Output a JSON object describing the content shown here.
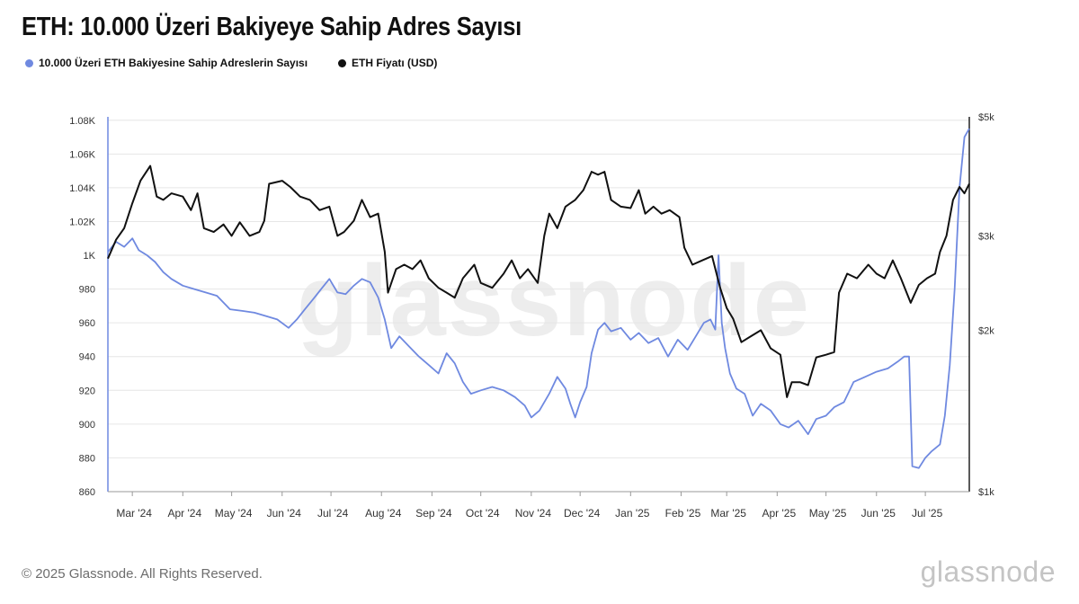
{
  "title": "ETH: 10.000 Üzeri Bakiyeye Sahip Adres Sayısı",
  "legend": [
    {
      "label": "10.000 Üzeri ETH Bakiyesine Sahip Adreslerin Sayısı",
      "color": "#6f89e0"
    },
    {
      "label": "ETH Fiyatı (USD)",
      "color": "#111111"
    }
  ],
  "watermark": "glassnode",
  "footer": "© 2025 Glassnode. All Rights Reserved.",
  "brand": "glassnode",
  "chart_data": {
    "type": "line",
    "x_tick_labels": [
      "Mar '24",
      "Apr '24",
      "May '24",
      "Jun '24",
      "Jul '24",
      "Aug '24",
      "Sep '24",
      "Oct '24",
      "Nov '24",
      "Dec '24",
      "Jan '25",
      "Feb '25",
      "Mar '25",
      "Apr '25",
      "May '25",
      "Jun '25",
      "Jul '25"
    ],
    "y_left": {
      "ticks": [
        860,
        880,
        900,
        920,
        940,
        960,
        980,
        1000,
        1020,
        1040,
        1060,
        1080
      ],
      "tick_labels": [
        "860",
        "880",
        "900",
        "920",
        "940",
        "960",
        "980",
        "1K",
        "1.02K",
        "1.04K",
        "1.06K",
        "1.08K"
      ],
      "range": [
        860,
        1082
      ]
    },
    "y_right": {
      "scale": "log",
      "ticks": [
        1000,
        2000,
        3000,
        5000
      ],
      "tick_labels": [
        "$1k",
        "$2k",
        "$3k",
        "$5k"
      ],
      "range": [
        1000,
        5000
      ]
    },
    "x_range": [
      "2024-02-15",
      "2025-07-28"
    ],
    "series": [
      {
        "name": "10.000 Üzeri ETH Bakiyesine Sahip Adreslerin Sayısı",
        "axis": "left",
        "color": "#6f89e0",
        "points": [
          [
            "2024-02-15",
            1002
          ],
          [
            "2024-02-20",
            1008
          ],
          [
            "2024-02-25",
            1005
          ],
          [
            "2024-03-01",
            1010
          ],
          [
            "2024-03-05",
            1003
          ],
          [
            "2024-03-10",
            1000
          ],
          [
            "2024-03-15",
            996
          ],
          [
            "2024-03-20",
            990
          ],
          [
            "2024-03-25",
            986
          ],
          [
            "2024-04-01",
            982
          ],
          [
            "2024-04-08",
            980
          ],
          [
            "2024-04-15",
            978
          ],
          [
            "2024-04-22",
            976
          ],
          [
            "2024-04-30",
            968
          ],
          [
            "2024-05-08",
            967
          ],
          [
            "2024-05-15",
            966
          ],
          [
            "2024-05-22",
            964
          ],
          [
            "2024-05-29",
            962
          ],
          [
            "2024-06-05",
            957
          ],
          [
            "2024-06-10",
            962
          ],
          [
            "2024-06-15",
            968
          ],
          [
            "2024-06-20",
            974
          ],
          [
            "2024-06-25",
            980
          ],
          [
            "2024-06-30",
            986
          ],
          [
            "2024-07-05",
            978
          ],
          [
            "2024-07-10",
            977
          ],
          [
            "2024-07-15",
            982
          ],
          [
            "2024-07-20",
            986
          ],
          [
            "2024-07-25",
            984
          ],
          [
            "2024-07-30",
            975
          ],
          [
            "2024-08-03",
            962
          ],
          [
            "2024-08-07",
            945
          ],
          [
            "2024-08-12",
            952
          ],
          [
            "2024-08-18",
            946
          ],
          [
            "2024-08-24",
            940
          ],
          [
            "2024-08-30",
            935
          ],
          [
            "2024-09-05",
            930
          ],
          [
            "2024-09-10",
            942
          ],
          [
            "2024-09-15",
            936
          ],
          [
            "2024-09-20",
            925
          ],
          [
            "2024-09-25",
            918
          ],
          [
            "2024-10-01",
            920
          ],
          [
            "2024-10-08",
            922
          ],
          [
            "2024-10-15",
            920
          ],
          [
            "2024-10-22",
            916
          ],
          [
            "2024-10-28",
            911
          ],
          [
            "2024-11-01",
            904
          ],
          [
            "2024-11-06",
            908
          ],
          [
            "2024-11-12",
            918
          ],
          [
            "2024-11-17",
            928
          ],
          [
            "2024-11-22",
            921
          ],
          [
            "2024-11-25",
            912
          ],
          [
            "2024-11-28",
            904
          ],
          [
            "2024-12-01",
            913
          ],
          [
            "2024-12-05",
            922
          ],
          [
            "2024-12-08",
            942
          ],
          [
            "2024-12-12",
            956
          ],
          [
            "2024-12-16",
            960
          ],
          [
            "2024-12-20",
            955
          ],
          [
            "2024-12-26",
            957
          ],
          [
            "2025-01-01",
            950
          ],
          [
            "2025-01-06",
            954
          ],
          [
            "2025-01-12",
            948
          ],
          [
            "2025-01-18",
            951
          ],
          [
            "2025-01-24",
            940
          ],
          [
            "2025-01-30",
            950
          ],
          [
            "2025-02-05",
            944
          ],
          [
            "2025-02-10",
            952
          ],
          [
            "2025-02-15",
            960
          ],
          [
            "2025-02-19",
            962
          ],
          [
            "2025-02-22",
            956
          ],
          [
            "2025-02-24",
            1000
          ],
          [
            "2025-02-26",
            960
          ],
          [
            "2025-02-28",
            945
          ],
          [
            "2025-03-03",
            930
          ],
          [
            "2025-03-07",
            921
          ],
          [
            "2025-03-12",
            918
          ],
          [
            "2025-03-17",
            905
          ],
          [
            "2025-03-22",
            912
          ],
          [
            "2025-03-28",
            908
          ],
          [
            "2025-04-03",
            900
          ],
          [
            "2025-04-08",
            898
          ],
          [
            "2025-04-14",
            902
          ],
          [
            "2025-04-20",
            894
          ],
          [
            "2025-04-25",
            903
          ],
          [
            "2025-05-01",
            905
          ],
          [
            "2025-05-06",
            910
          ],
          [
            "2025-05-12",
            913
          ],
          [
            "2025-05-18",
            925
          ],
          [
            "2025-05-25",
            928
          ],
          [
            "2025-06-01",
            931
          ],
          [
            "2025-06-08",
            933
          ],
          [
            "2025-06-14",
            937
          ],
          [
            "2025-06-18",
            940
          ],
          [
            "2025-06-21",
            940
          ],
          [
            "2025-06-23",
            875
          ],
          [
            "2025-06-27",
            874
          ],
          [
            "2025-07-01",
            880
          ],
          [
            "2025-07-05",
            884
          ],
          [
            "2025-07-10",
            888
          ],
          [
            "2025-07-13",
            905
          ],
          [
            "2025-07-16",
            935
          ],
          [
            "2025-07-19",
            980
          ],
          [
            "2025-07-22",
            1040
          ],
          [
            "2025-07-25",
            1070
          ],
          [
            "2025-07-28",
            1075
          ]
        ]
      },
      {
        "name": "ETH Fiyatı (USD)",
        "axis": "right",
        "color": "#111111",
        "points": [
          [
            "2024-02-15",
            2720
          ],
          [
            "2024-02-20",
            2950
          ],
          [
            "2024-02-25",
            3100
          ],
          [
            "2024-03-01",
            3450
          ],
          [
            "2024-03-06",
            3800
          ],
          [
            "2024-03-12",
            4050
          ],
          [
            "2024-03-16",
            3550
          ],
          [
            "2024-03-20",
            3500
          ],
          [
            "2024-03-25",
            3600
          ],
          [
            "2024-04-01",
            3550
          ],
          [
            "2024-04-06",
            3350
          ],
          [
            "2024-04-10",
            3600
          ],
          [
            "2024-04-14",
            3100
          ],
          [
            "2024-04-20",
            3050
          ],
          [
            "2024-04-26",
            3150
          ],
          [
            "2024-05-01",
            3000
          ],
          [
            "2024-05-06",
            3180
          ],
          [
            "2024-05-12",
            3000
          ],
          [
            "2024-05-18",
            3050
          ],
          [
            "2024-05-21",
            3200
          ],
          [
            "2024-05-24",
            3750
          ],
          [
            "2024-06-01",
            3800
          ],
          [
            "2024-06-06",
            3700
          ],
          [
            "2024-06-12",
            3550
          ],
          [
            "2024-06-18",
            3500
          ],
          [
            "2024-06-24",
            3350
          ],
          [
            "2024-06-30",
            3400
          ],
          [
            "2024-07-05",
            3000
          ],
          [
            "2024-07-09",
            3050
          ],
          [
            "2024-07-15",
            3200
          ],
          [
            "2024-07-20",
            3500
          ],
          [
            "2024-07-25",
            3250
          ],
          [
            "2024-07-30",
            3300
          ],
          [
            "2024-08-03",
            2800
          ],
          [
            "2024-08-05",
            2350
          ],
          [
            "2024-08-10",
            2600
          ],
          [
            "2024-08-15",
            2650
          ],
          [
            "2024-08-20",
            2600
          ],
          [
            "2024-08-25",
            2700
          ],
          [
            "2024-08-30",
            2500
          ],
          [
            "2024-09-05",
            2400
          ],
          [
            "2024-09-10",
            2350
          ],
          [
            "2024-09-15",
            2300
          ],
          [
            "2024-09-20",
            2500
          ],
          [
            "2024-09-27",
            2650
          ],
          [
            "2024-10-01",
            2450
          ],
          [
            "2024-10-08",
            2400
          ],
          [
            "2024-10-15",
            2550
          ],
          [
            "2024-10-20",
            2700
          ],
          [
            "2024-10-25",
            2500
          ],
          [
            "2024-10-30",
            2600
          ],
          [
            "2024-11-05",
            2450
          ],
          [
            "2024-11-09",
            3000
          ],
          [
            "2024-11-12",
            3300
          ],
          [
            "2024-11-17",
            3100
          ],
          [
            "2024-11-22",
            3400
          ],
          [
            "2024-11-28",
            3500
          ],
          [
            "2024-12-03",
            3650
          ],
          [
            "2024-12-08",
            3950
          ],
          [
            "2024-12-12",
            3900
          ],
          [
            "2024-12-16",
            3950
          ],
          [
            "2024-12-20",
            3500
          ],
          [
            "2024-12-26",
            3400
          ],
          [
            "2025-01-01",
            3380
          ],
          [
            "2025-01-06",
            3650
          ],
          [
            "2025-01-10",
            3300
          ],
          [
            "2025-01-15",
            3400
          ],
          [
            "2025-01-20",
            3300
          ],
          [
            "2025-01-25",
            3350
          ],
          [
            "2025-01-31",
            3250
          ],
          [
            "2025-02-03",
            2850
          ],
          [
            "2025-02-08",
            2650
          ],
          [
            "2025-02-14",
            2700
          ],
          [
            "2025-02-20",
            2750
          ],
          [
            "2025-02-25",
            2400
          ],
          [
            "2025-03-01",
            2200
          ],
          [
            "2025-03-05",
            2100
          ],
          [
            "2025-03-10",
            1900
          ],
          [
            "2025-03-16",
            1950
          ],
          [
            "2025-03-22",
            2000
          ],
          [
            "2025-03-28",
            1850
          ],
          [
            "2025-04-03",
            1800
          ],
          [
            "2025-04-07",
            1500
          ],
          [
            "2025-04-10",
            1600
          ],
          [
            "2025-04-15",
            1600
          ],
          [
            "2025-04-20",
            1580
          ],
          [
            "2025-04-25",
            1780
          ],
          [
            "2025-05-01",
            1800
          ],
          [
            "2025-05-06",
            1820
          ],
          [
            "2025-05-09",
            2350
          ],
          [
            "2025-05-14",
            2550
          ],
          [
            "2025-05-20",
            2500
          ],
          [
            "2025-05-27",
            2650
          ],
          [
            "2025-06-01",
            2550
          ],
          [
            "2025-06-06",
            2500
          ],
          [
            "2025-06-11",
            2700
          ],
          [
            "2025-06-16",
            2500
          ],
          [
            "2025-06-22",
            2250
          ],
          [
            "2025-06-27",
            2430
          ],
          [
            "2025-07-02",
            2500
          ],
          [
            "2025-07-07",
            2550
          ],
          [
            "2025-07-10",
            2800
          ],
          [
            "2025-07-14",
            3000
          ],
          [
            "2025-07-18",
            3500
          ],
          [
            "2025-07-22",
            3700
          ],
          [
            "2025-07-25",
            3600
          ],
          [
            "2025-07-28",
            3750
          ]
        ]
      }
    ],
    "grid": true
  }
}
